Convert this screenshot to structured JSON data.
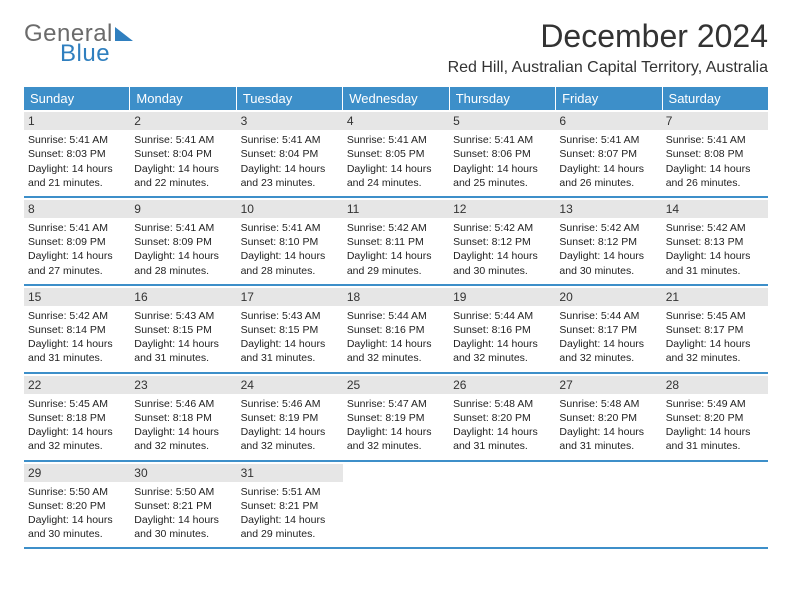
{
  "logo": {
    "text1": "General",
    "text2": "Blue"
  },
  "title": "December 2024",
  "location": "Red Hill, Australian Capital Territory, Australia",
  "colors": {
    "header_bg": "#3d8fc9",
    "header_text": "#ffffff",
    "daynum_bg": "#e6e6e6",
    "border": "#3d8fc9",
    "logo_gray": "#6b6b6b",
    "logo_blue": "#2f7fbf"
  },
  "day_names": [
    "Sunday",
    "Monday",
    "Tuesday",
    "Wednesday",
    "Thursday",
    "Friday",
    "Saturday"
  ],
  "weeks": [
    [
      {
        "n": "1",
        "sr": "5:41 AM",
        "ss": "8:03 PM",
        "dl": "14 hours and 21 minutes."
      },
      {
        "n": "2",
        "sr": "5:41 AM",
        "ss": "8:04 PM",
        "dl": "14 hours and 22 minutes."
      },
      {
        "n": "3",
        "sr": "5:41 AM",
        "ss": "8:04 PM",
        "dl": "14 hours and 23 minutes."
      },
      {
        "n": "4",
        "sr": "5:41 AM",
        "ss": "8:05 PM",
        "dl": "14 hours and 24 minutes."
      },
      {
        "n": "5",
        "sr": "5:41 AM",
        "ss": "8:06 PM",
        "dl": "14 hours and 25 minutes."
      },
      {
        "n": "6",
        "sr": "5:41 AM",
        "ss": "8:07 PM",
        "dl": "14 hours and 26 minutes."
      },
      {
        "n": "7",
        "sr": "5:41 AM",
        "ss": "8:08 PM",
        "dl": "14 hours and 26 minutes."
      }
    ],
    [
      {
        "n": "8",
        "sr": "5:41 AM",
        "ss": "8:09 PM",
        "dl": "14 hours and 27 minutes."
      },
      {
        "n": "9",
        "sr": "5:41 AM",
        "ss": "8:09 PM",
        "dl": "14 hours and 28 minutes."
      },
      {
        "n": "10",
        "sr": "5:41 AM",
        "ss": "8:10 PM",
        "dl": "14 hours and 28 minutes."
      },
      {
        "n": "11",
        "sr": "5:42 AM",
        "ss": "8:11 PM",
        "dl": "14 hours and 29 minutes."
      },
      {
        "n": "12",
        "sr": "5:42 AM",
        "ss": "8:12 PM",
        "dl": "14 hours and 30 minutes."
      },
      {
        "n": "13",
        "sr": "5:42 AM",
        "ss": "8:12 PM",
        "dl": "14 hours and 30 minutes."
      },
      {
        "n": "14",
        "sr": "5:42 AM",
        "ss": "8:13 PM",
        "dl": "14 hours and 31 minutes."
      }
    ],
    [
      {
        "n": "15",
        "sr": "5:42 AM",
        "ss": "8:14 PM",
        "dl": "14 hours and 31 minutes."
      },
      {
        "n": "16",
        "sr": "5:43 AM",
        "ss": "8:15 PM",
        "dl": "14 hours and 31 minutes."
      },
      {
        "n": "17",
        "sr": "5:43 AM",
        "ss": "8:15 PM",
        "dl": "14 hours and 31 minutes."
      },
      {
        "n": "18",
        "sr": "5:44 AM",
        "ss": "8:16 PM",
        "dl": "14 hours and 32 minutes."
      },
      {
        "n": "19",
        "sr": "5:44 AM",
        "ss": "8:16 PM",
        "dl": "14 hours and 32 minutes."
      },
      {
        "n": "20",
        "sr": "5:44 AM",
        "ss": "8:17 PM",
        "dl": "14 hours and 32 minutes."
      },
      {
        "n": "21",
        "sr": "5:45 AM",
        "ss": "8:17 PM",
        "dl": "14 hours and 32 minutes."
      }
    ],
    [
      {
        "n": "22",
        "sr": "5:45 AM",
        "ss": "8:18 PM",
        "dl": "14 hours and 32 minutes."
      },
      {
        "n": "23",
        "sr": "5:46 AM",
        "ss": "8:18 PM",
        "dl": "14 hours and 32 minutes."
      },
      {
        "n": "24",
        "sr": "5:46 AM",
        "ss": "8:19 PM",
        "dl": "14 hours and 32 minutes."
      },
      {
        "n": "25",
        "sr": "5:47 AM",
        "ss": "8:19 PM",
        "dl": "14 hours and 32 minutes."
      },
      {
        "n": "26",
        "sr": "5:48 AM",
        "ss": "8:20 PM",
        "dl": "14 hours and 31 minutes."
      },
      {
        "n": "27",
        "sr": "5:48 AM",
        "ss": "8:20 PM",
        "dl": "14 hours and 31 minutes."
      },
      {
        "n": "28",
        "sr": "5:49 AM",
        "ss": "8:20 PM",
        "dl": "14 hours and 31 minutes."
      }
    ],
    [
      {
        "n": "29",
        "sr": "5:50 AM",
        "ss": "8:20 PM",
        "dl": "14 hours and 30 minutes."
      },
      {
        "n": "30",
        "sr": "5:50 AM",
        "ss": "8:21 PM",
        "dl": "14 hours and 30 minutes."
      },
      {
        "n": "31",
        "sr": "5:51 AM",
        "ss": "8:21 PM",
        "dl": "14 hours and 29 minutes."
      },
      null,
      null,
      null,
      null
    ]
  ],
  "labels": {
    "sunrise": "Sunrise:",
    "sunset": "Sunset:",
    "daylight": "Daylight:"
  }
}
